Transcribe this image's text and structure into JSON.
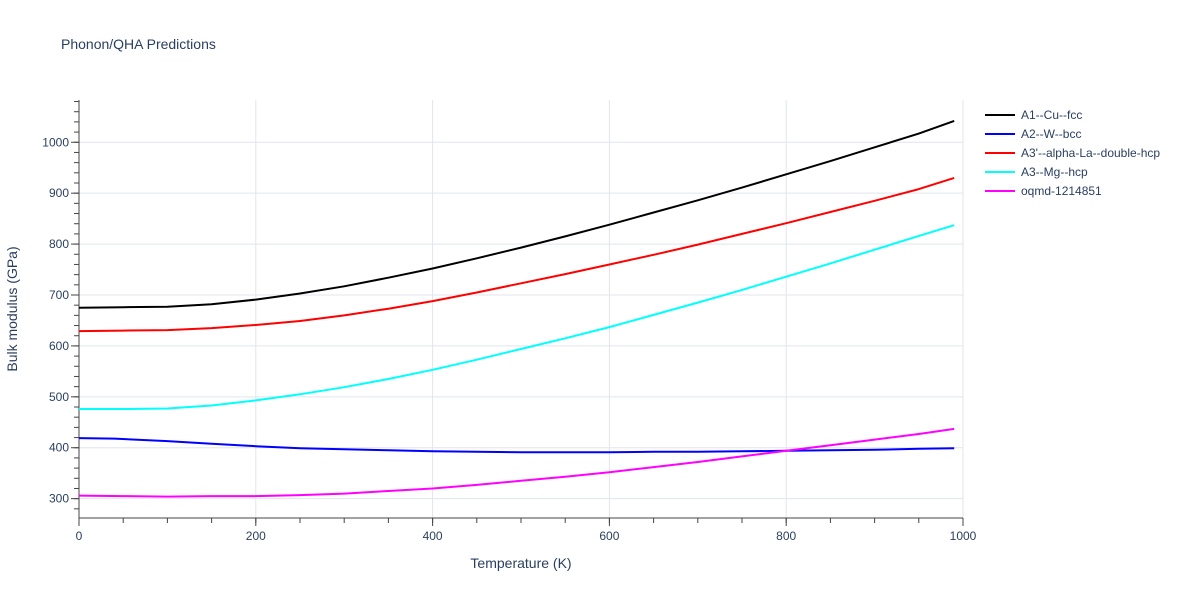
{
  "chart_data": {
    "type": "line",
    "title": "Phonon/QHA Predictions",
    "xlabel": "Temperature (K)",
    "ylabel": "Bulk modulus (GPa)",
    "xlim": [
      0,
      1000
    ],
    "ylim": [
      262,
      1083
    ],
    "x_ticks": [
      0,
      200,
      400,
      600,
      800,
      1000
    ],
    "y_ticks": [
      300,
      400,
      500,
      600,
      700,
      800,
      900,
      1000
    ],
    "grid": true,
    "legend_position": "top-right",
    "series": [
      {
        "name": "A1--Cu--fcc",
        "color": "#000000",
        "x": [
          0,
          50,
          100,
          150,
          200,
          250,
          300,
          350,
          400,
          450,
          500,
          550,
          600,
          650,
          700,
          750,
          800,
          850,
          900,
          950,
          990
        ],
        "y": [
          675,
          676,
          677,
          682,
          691,
          703,
          717,
          734,
          752,
          772,
          793,
          815,
          838,
          862,
          886,
          911,
          937,
          963,
          990,
          1017,
          1042
        ]
      },
      {
        "name": "A2--W--bcc",
        "color": "#0000ff",
        "x": [
          0,
          40,
          100,
          150,
          200,
          250,
          300,
          350,
          400,
          450,
          500,
          550,
          600,
          650,
          700,
          750,
          800,
          850,
          900,
          950,
          990
        ],
        "y": [
          419,
          418,
          413,
          408,
          403,
          399,
          397,
          395,
          393,
          392,
          391,
          391,
          391,
          392,
          392,
          393,
          394,
          395,
          396,
          398,
          399
        ]
      },
      {
        "name": "A3'--alpha-La--double-hcp",
        "color": "#ff0000",
        "x": [
          0,
          50,
          100,
          150,
          200,
          250,
          300,
          350,
          400,
          450,
          500,
          550,
          600,
          650,
          700,
          750,
          800,
          850,
          900,
          950,
          990
        ],
        "y": [
          629,
          630,
          631,
          635,
          641,
          649,
          660,
          673,
          688,
          705,
          723,
          741,
          760,
          779,
          799,
          820,
          841,
          863,
          885,
          908,
          930
        ]
      },
      {
        "name": "A3--Mg--hcp",
        "color": "#00ffff",
        "x": [
          0,
          50,
          100,
          150,
          200,
          250,
          300,
          350,
          400,
          450,
          500,
          550,
          600,
          650,
          700,
          750,
          800,
          850,
          900,
          950,
          990
        ],
        "y": [
          476,
          476,
          477,
          483,
          493,
          505,
          519,
          535,
          553,
          573,
          594,
          615,
          637,
          661,
          685,
          710,
          736,
          762,
          789,
          816,
          837
        ]
      },
      {
        "name": "oqmd-1214851",
        "color": "#ff00ff",
        "x": [
          0,
          50,
          100,
          150,
          200,
          250,
          300,
          350,
          400,
          450,
          500,
          550,
          600,
          650,
          700,
          750,
          800,
          850,
          900,
          950,
          990
        ],
        "y": [
          306,
          305,
          304,
          305,
          305,
          307,
          310,
          315,
          320,
          327,
          335,
          343,
          352,
          362,
          372,
          383,
          394,
          405,
          416,
          427,
          437
        ]
      }
    ]
  }
}
